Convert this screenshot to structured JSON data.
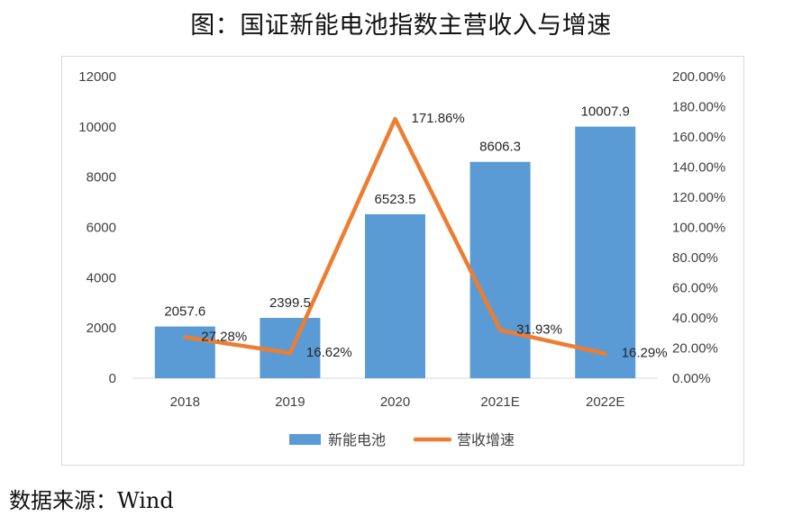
{
  "page": {
    "title": "图：国证新能电池指数主营收入与增速",
    "source": "数据来源：Wind"
  },
  "chart_data": {
    "type": "bar",
    "categories": [
      "2018",
      "2019",
      "2020",
      "2021E",
      "2022E"
    ],
    "series": [
      {
        "name": "新能电池",
        "type": "bar",
        "axis": "left",
        "color": "#5B9BD5",
        "values": [
          2057.6,
          2399.5,
          6523.5,
          8606.3,
          10007.9
        ],
        "labels": [
          "2057.6",
          "2399.5",
          "6523.5",
          "8606.3",
          "10007.9"
        ]
      },
      {
        "name": "营收增速",
        "type": "line",
        "axis": "right",
        "color": "#ED7D31",
        "values": [
          27.28,
          16.62,
          171.86,
          31.93,
          16.29
        ],
        "labels": [
          "27.28%",
          "16.62%",
          "171.86%",
          "31.93%",
          "16.29%"
        ]
      }
    ],
    "left_axis": {
      "ylim": [
        0,
        12000
      ],
      "ticks": [
        "0",
        "2000",
        "4000",
        "6000",
        "8000",
        "10000",
        "12000"
      ]
    },
    "right_axis": {
      "ylim": [
        0,
        200
      ],
      "ticks": [
        "0.00%",
        "20.00%",
        "40.00%",
        "60.00%",
        "80.00%",
        "100.00%",
        "120.00%",
        "140.00%",
        "160.00%",
        "180.00%",
        "200.00%"
      ]
    },
    "grid": false,
    "legend_position": "bottom"
  }
}
